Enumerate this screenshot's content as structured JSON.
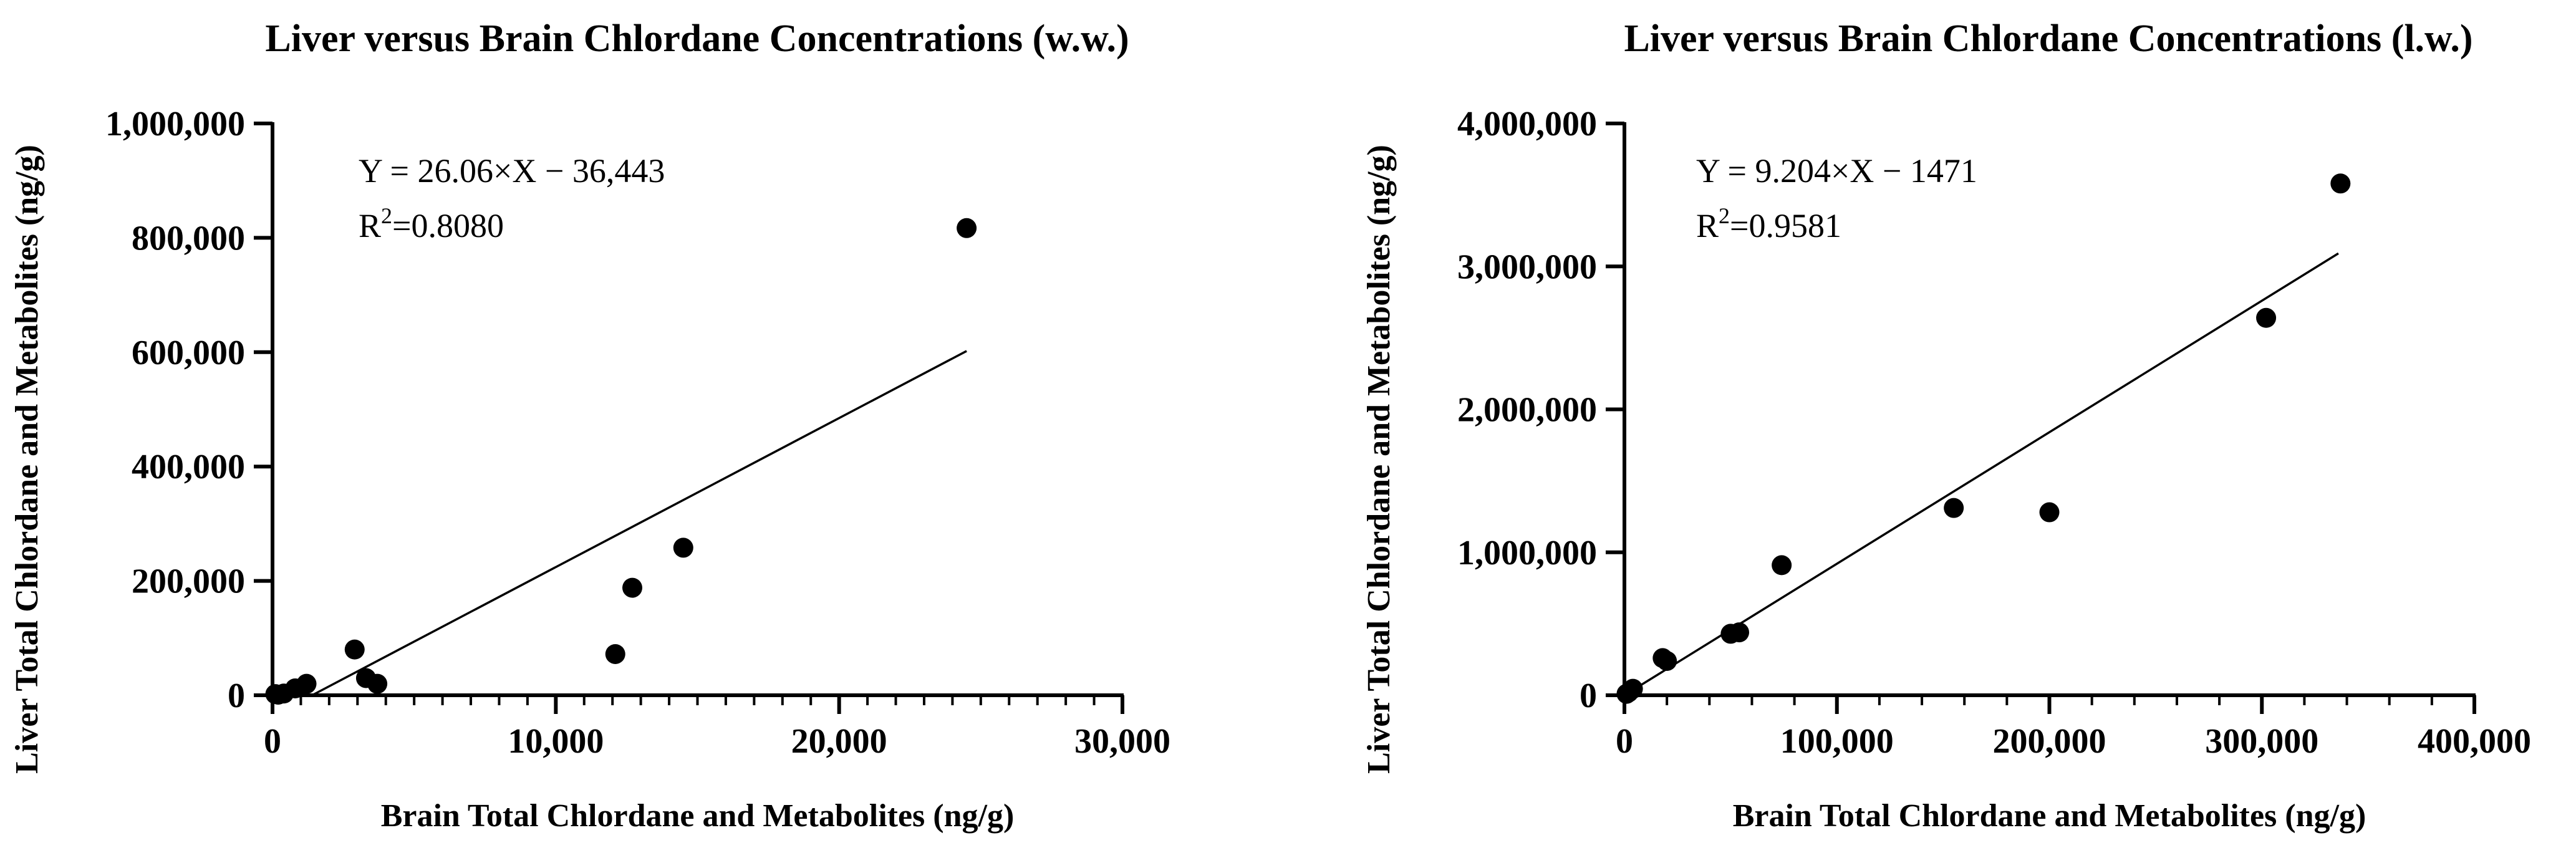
{
  "colors": {
    "ink": "#000000",
    "background": "#ffffff"
  },
  "chart_data": [
    {
      "type": "scatter",
      "title": "Liver versus Brain Chlordane Concentrations (w.w.)",
      "xlabel": "Brain Total Chlordane and Metabolites (ng/g)",
      "ylabel": "Liver Total Chlordane and Metabolites (ng/g)",
      "xlim": [
        0,
        30000
      ],
      "ylim": [
        0,
        1000000
      ],
      "xticks": [
        0,
        10000,
        20000,
        30000
      ],
      "xtick_labels": [
        "0",
        "10,000",
        "20,000",
        "30,000"
      ],
      "x_minor_step": 1000,
      "yticks": [
        0,
        200000,
        400000,
        600000,
        800000,
        1000000
      ],
      "ytick_labels": [
        "0",
        "200,000",
        "400,000",
        "600,000",
        "800,000",
        "1,000,000"
      ],
      "y_minor_step": 0,
      "grid": false,
      "equation": "Y = 26.06×X − 36,443",
      "r2_prefix": "R",
      "r2_exp": "2",
      "r2_value": "=0.8080",
      "fit": {
        "slope": 26.06,
        "intercept": -36443,
        "x_range": [
          1400,
          24500
        ]
      },
      "points": [
        {
          "x": 100,
          "y": 2000
        },
        {
          "x": 200,
          "y": 1000
        },
        {
          "x": 400,
          "y": 3000
        },
        {
          "x": 800,
          "y": 12000
        },
        {
          "x": 1200,
          "y": 20000
        },
        {
          "x": 2900,
          "y": 80000
        },
        {
          "x": 3300,
          "y": 30000
        },
        {
          "x": 3700,
          "y": 20000
        },
        {
          "x": 12100,
          "y": 72000
        },
        {
          "x": 12700,
          "y": 188000
        },
        {
          "x": 14500,
          "y": 258000
        },
        {
          "x": 24500,
          "y": 817000
        }
      ]
    },
    {
      "type": "scatter",
      "title": "Liver versus Brain Chlordane Concentrations (l.w.)",
      "xlabel": "Brain Total Chlordane and Metabolites (ng/g)",
      "ylabel": "Liver Total Chlordane and Metabolites (ng/g)",
      "xlim": [
        0,
        400000
      ],
      "ylim": [
        0,
        4000000
      ],
      "xticks": [
        0,
        100000,
        200000,
        300000,
        400000
      ],
      "xtick_labels": [
        "0",
        "100,000",
        "200,000",
        "300,000",
        "400,000"
      ],
      "x_minor_step": 20000,
      "yticks": [
        0,
        1000000,
        2000000,
        3000000,
        4000000
      ],
      "ytick_labels": [
        "0",
        "1,000,000",
        "2,000,000",
        "3,000,000",
        "4,000,000"
      ],
      "y_minor_step": 0,
      "grid": false,
      "equation": "Y = 9.204×X − 1471",
      "r2_prefix": "R",
      "r2_exp": "2",
      "r2_value": "=0.9581",
      "fit": {
        "slope": 9.204,
        "intercept": -1471,
        "x_range": [
          0,
          336000
        ]
      },
      "points": [
        {
          "x": 1000,
          "y": 10000
        },
        {
          "x": 2000,
          "y": 20000
        },
        {
          "x": 4000,
          "y": 45000
        },
        {
          "x": 18000,
          "y": 260000
        },
        {
          "x": 20000,
          "y": 240000
        },
        {
          "x": 50000,
          "y": 430000
        },
        {
          "x": 54000,
          "y": 440000
        },
        {
          "x": 74000,
          "y": 910000
        },
        {
          "x": 155000,
          "y": 1310000
        },
        {
          "x": 200000,
          "y": 1280000
        },
        {
          "x": 302000,
          "y": 2640000
        },
        {
          "x": 337000,
          "y": 3580000
        }
      ]
    }
  ]
}
